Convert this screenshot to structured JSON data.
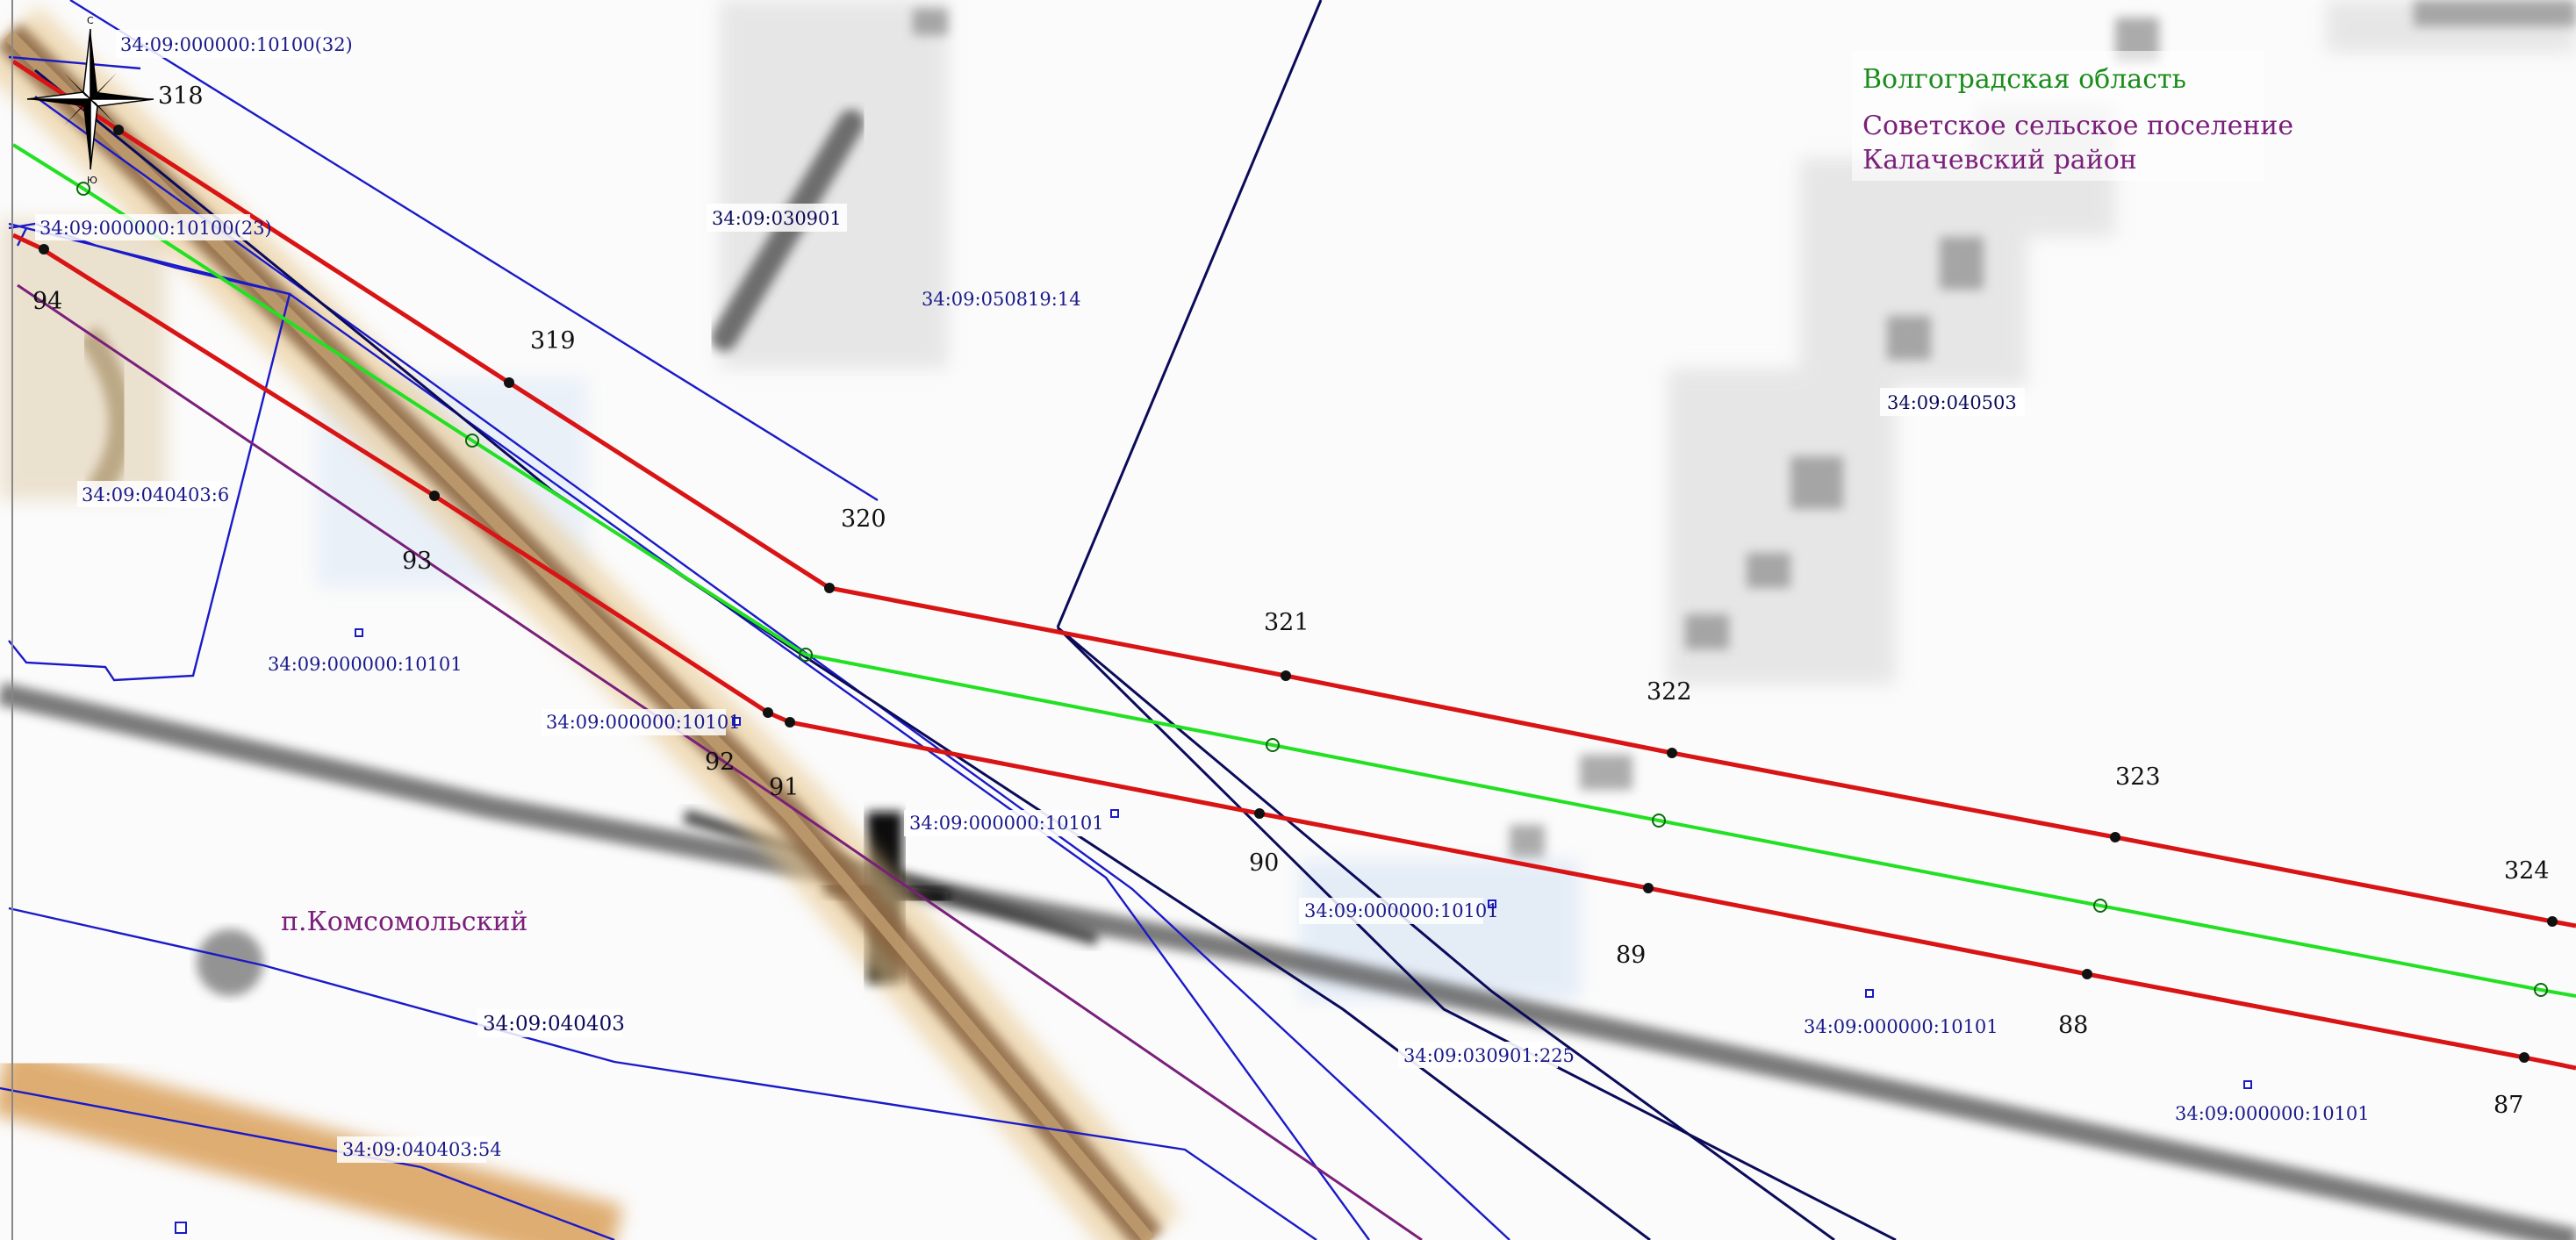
{
  "colors": {
    "route_red": "#d91414",
    "axis_green": "#22e022",
    "cadastre_blue": "#1a1ac8",
    "district_purple": "#7a1f7a",
    "navy_line": "#0b0b5a",
    "region_label": "#1a8c1a",
    "settlement_label": "#7a1f7a"
  },
  "legend": {
    "region": "Волгоградская область",
    "settlement": "Советское сельское поселение",
    "district": "Калачевский район"
  },
  "compass": {
    "north": "С",
    "south": "Ю"
  },
  "town": "п.Комсомольский",
  "points": {
    "p318": "318",
    "p319": "319",
    "p320": "320",
    "p321": "321",
    "p322": "322",
    "p323": "323",
    "p324": "324",
    "p94": "94",
    "p93": "93",
    "p92": "92",
    "p91": "91",
    "p90": "90",
    "p89": "89",
    "p88": "88",
    "p87": "87"
  },
  "cadastre": {
    "c1": "34:09:000000:10100(32)",
    "c2": "34:09:000000:10100(23)",
    "c3": "34:09:030901",
    "c4": "34:09:050819:14",
    "c5": "34:09:040503",
    "c6": "34:09:040403:6",
    "c7": "34:09:000000:10101",
    "c8": "34:09:000000:10101",
    "c9": "34:09:000000:10101",
    "c10": "34:09:000000:10101",
    "c11": "34:09:000000:10101",
    "c12": "34:09:000000:10101",
    "c13": "34:09:040403",
    "c14": "34:09:030901:225",
    "c15": "34:09:040403:54"
  }
}
